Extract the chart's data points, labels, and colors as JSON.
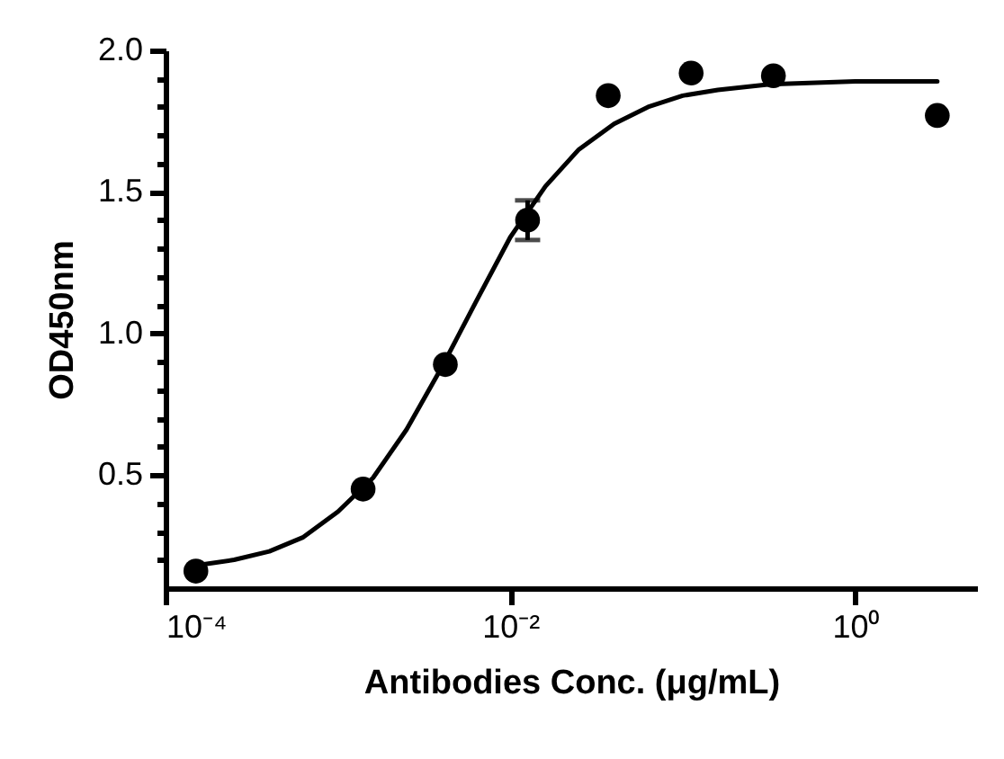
{
  "chart_data": {
    "type": "scatter",
    "xlabel": "Antibodies Conc. (μg/mL)",
    "ylabel": "OD450nm",
    "log": "x",
    "xlim": [
      0.0001,
      5.1
    ],
    "xticks": [
      {
        "value": 0.0001,
        "label": "10⁻⁴"
      },
      {
        "value": 0.01,
        "label": "10⁻²"
      },
      {
        "value": 1,
        "label": "10⁰"
      }
    ],
    "ylim": [
      0.1,
      2.0
    ],
    "yticks": [
      {
        "value": 0.2,
        "label": null
      },
      {
        "value": 0.3,
        "label": null
      },
      {
        "value": 0.4,
        "label": null
      },
      {
        "value": 0.5,
        "label": "0.5"
      },
      {
        "value": 0.6,
        "label": null
      },
      {
        "value": 0.7,
        "label": null
      },
      {
        "value": 0.8,
        "label": null
      },
      {
        "value": 0.9,
        "label": null
      },
      {
        "value": 1,
        "label": "1.0"
      },
      {
        "value": 1.1,
        "label": null
      },
      {
        "value": 1.2,
        "label": null
      },
      {
        "value": 1.3,
        "label": null
      },
      {
        "value": 1.4,
        "label": null
      },
      {
        "value": 1.5,
        "label": "1.5"
      },
      {
        "value": 1.6,
        "label": null
      },
      {
        "value": 1.7,
        "label": null
      },
      {
        "value": 1.8,
        "label": null
      },
      {
        "value": 1.9,
        "label": null
      },
      {
        "value": 2,
        "label": "2.0"
      }
    ],
    "grid": false,
    "series": [
      {
        "type": "line",
        "color": "#000000",
        "marker": "none",
        "line_style": "solid",
        "x": [
          0.00015,
          0.00025,
          0.0004,
          0.00063,
          0.001,
          0.0016,
          0.0025,
          0.004,
          0.0063,
          0.01,
          0.016,
          0.025,
          0.04,
          0.063,
          0.1,
          0.16,
          0.32,
          1,
          3.0
        ],
        "values": [
          0.18,
          0.2,
          0.23,
          0.28,
          0.37,
          0.49,
          0.66,
          0.88,
          1.11,
          1.34,
          1.52,
          1.65,
          1.74,
          1.8,
          1.84,
          1.86,
          1.88,
          1.89,
          1.89
        ]
      },
      {
        "color": "#000000",
        "marker": "circle",
        "x": [
          0.00015,
          0.0014,
          0.0042,
          0.0126,
          0.037,
          0.112,
          0.336,
          3.0
        ],
        "values": [
          0.16,
          0.45,
          0.89,
          1.4,
          1.84,
          1.92,
          1.91,
          1.77
        ],
        "errors": [
          null,
          null,
          null,
          0.07,
          null,
          null,
          null,
          null
        ]
      }
    ]
  }
}
